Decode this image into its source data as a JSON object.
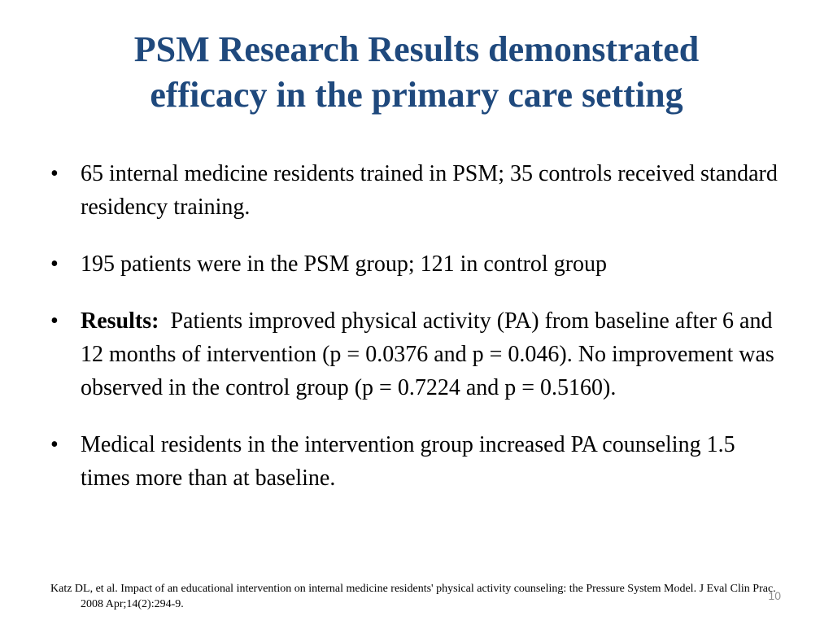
{
  "slide": {
    "title_line1": "PSM Research Results demonstrated",
    "title_line2": "efficacy in the primary care setting",
    "title_color": "#1f497d",
    "bullet_symbol": "•",
    "bullets": [
      {
        "text": "65 internal medicine residents trained in PSM; 35 controls received standard residency training."
      },
      {
        "text": "195 patients were in the PSM group; 121 in control group"
      },
      {
        "bold_prefix": "Results:",
        "text": "Patients improved physical activity (PA) from baseline after 6 and 12 months of intervention (p = 0.0376 and p = 0.046).  No improvement was observed in the control group (p = 0.7224 and p = 0.5160)."
      },
      {
        "text": " Medical residents in the intervention group increased PA counseling 1.5 times more than at baseline."
      }
    ],
    "citation": "Katz DL, et al. Impact of an educational intervention on internal medicine residents' physical activity counseling: the Pressure System Model. J Eval Clin Prac. 2008 Apr;14(2):294-9.",
    "page_number": "10"
  }
}
